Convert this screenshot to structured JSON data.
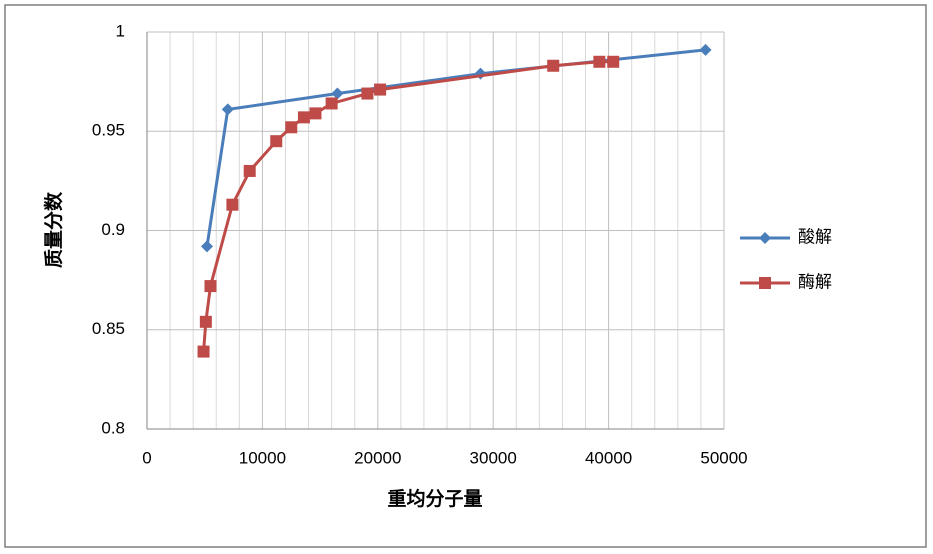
{
  "chart_data": {
    "type": "line",
    "x_label": "重均分子量",
    "y_label": "质量分数",
    "xlim": [
      0,
      50000
    ],
    "xticks": [
      0,
      10000,
      20000,
      30000,
      40000,
      50000
    ],
    "x_minor_ticks": [
      2000,
      4000,
      6000,
      8000,
      12000,
      14000,
      16000,
      18000,
      22000,
      24000,
      26000,
      28000,
      32000,
      34000,
      36000,
      38000,
      42000,
      44000,
      46000,
      48000
    ],
    "ylim": [
      0.8,
      1
    ],
    "yticks": [
      0.8,
      0.85,
      0.9,
      0.95,
      1
    ],
    "grid": true,
    "legend": "right",
    "series": [
      {
        "name": "酸解",
        "color": "#4a7ebb",
        "marker": "diamond",
        "x": [
          5200,
          7000,
          16500,
          28900,
          48400
        ],
        "values": [
          0.892,
          0.961,
          0.969,
          0.979,
          0.991
        ]
      },
      {
        "name": "酶解",
        "color": "#be4b48",
        "marker": "square",
        "x": [
          4900,
          5100,
          5500,
          7400,
          8900,
          11200,
          12500,
          13600,
          14600,
          16000,
          19100,
          20200,
          35200,
          39200,
          40400
        ],
        "values": [
          0.839,
          0.854,
          0.872,
          0.913,
          0.93,
          0.945,
          0.952,
          0.957,
          0.959,
          0.964,
          0.969,
          0.971,
          0.983,
          0.985,
          0.985
        ]
      }
    ]
  }
}
